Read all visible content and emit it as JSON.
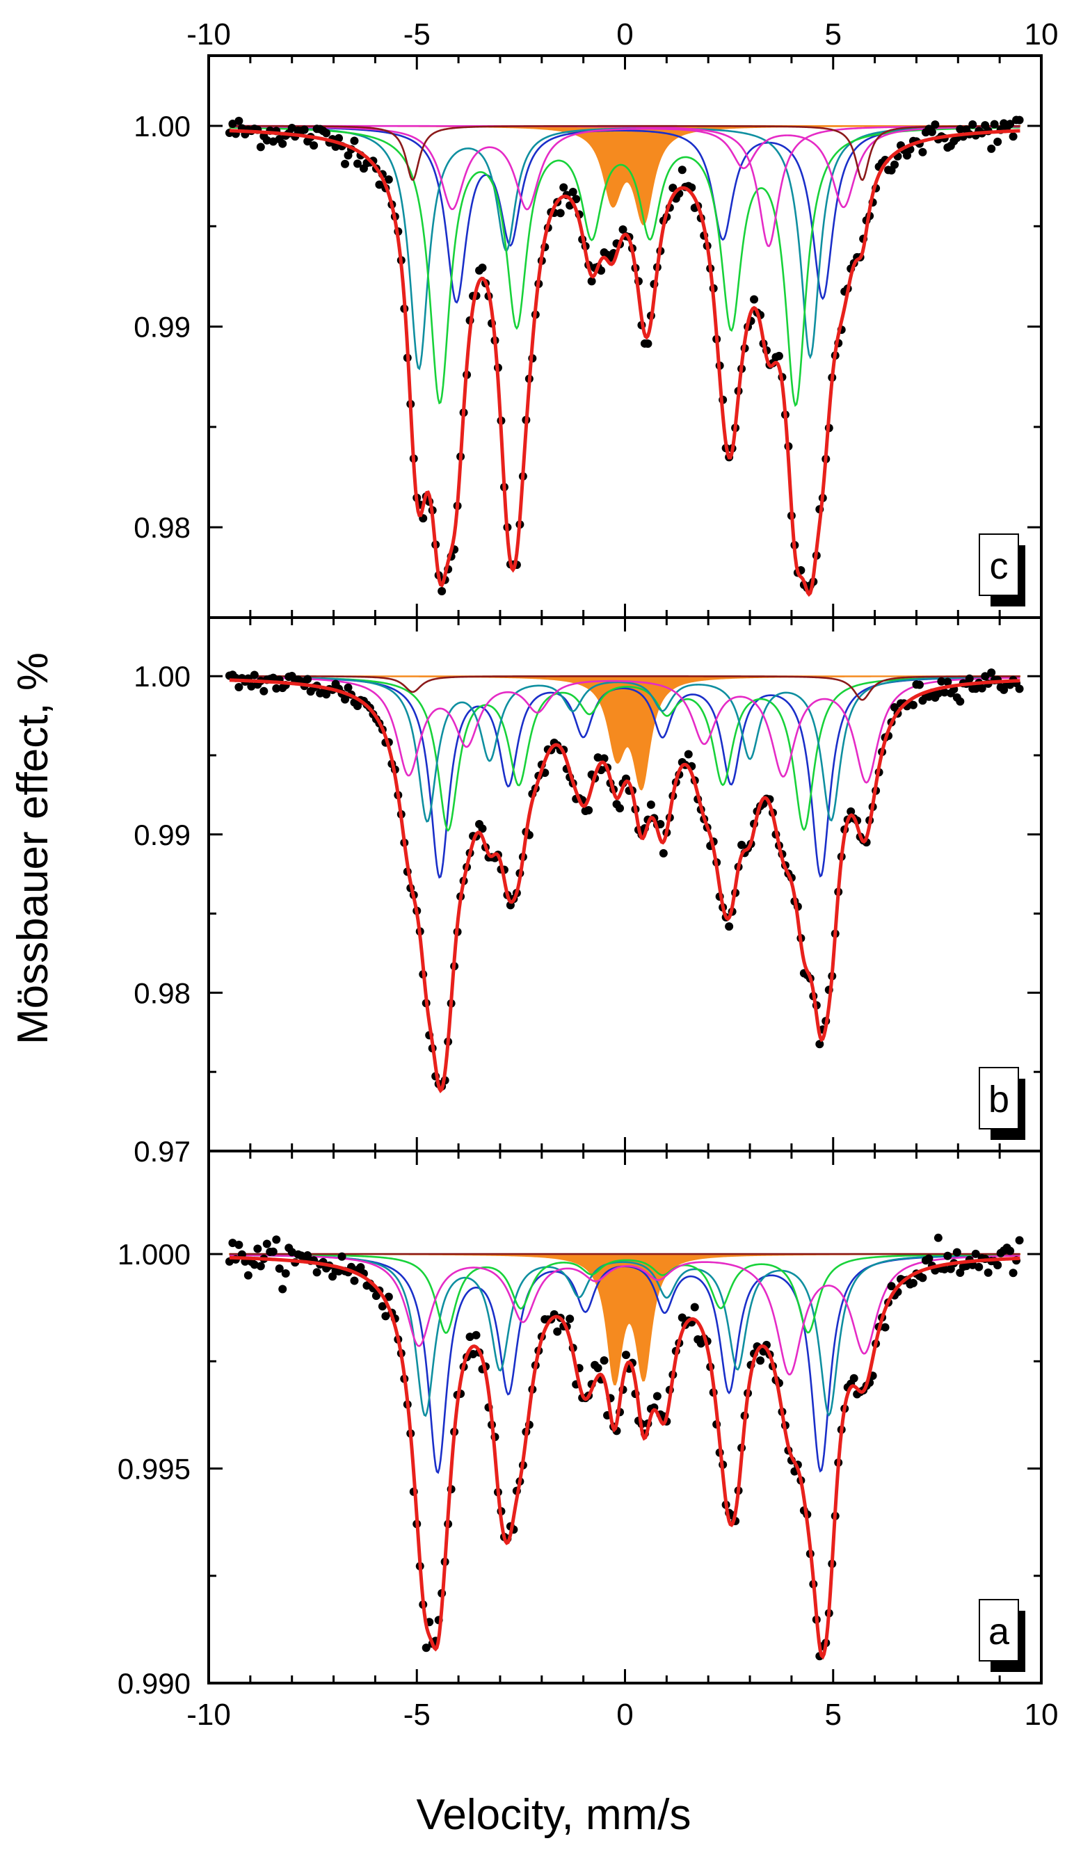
{
  "figure": {
    "xlabel": "Velocity, mm/s",
    "ylabel": "Mössbauer effect, %",
    "x_ticks": [
      "-10",
      "-5",
      "0",
      "5",
      "10"
    ],
    "xlim": [
      -10,
      10
    ]
  },
  "colors": {
    "data": "#000000",
    "fit": "#e8211c",
    "doublet": "#f58a1f",
    "blue": "#1a2fc9",
    "teal": "#0f8fa0",
    "green": "#18d23a",
    "magenta": "#e52bc6",
    "brown": "#8b1a1a"
  },
  "chart_data": [
    {
      "panel_label": "c",
      "type": "scatter",
      "ylim": [
        0.9755,
        1.0035
      ],
      "y_ticks": [
        1.0,
        0.99,
        0.98
      ],
      "y_tick_labels": [
        "1.00",
        "0.99",
        "0.98"
      ],
      "noise": 0.00045,
      "doublet": {
        "centers": [
          -0.3,
          0.45
        ],
        "depths": [
          0.0035,
          0.0045
        ],
        "width": 0.55
      },
      "sextets": [
        {
          "name": "blue",
          "color_key": "blue",
          "lines": [
            -4.3,
            -4.05,
            -2.75,
            2.35,
            3.55,
            4.75
          ],
          "depths": [
            0.0,
            0.0085,
            0.0055,
            0.0055,
            0.0,
            0.0085
          ],
          "width": 0.6
        },
        {
          "name": "teal",
          "color_key": "teal",
          "lines": [
            -4.95,
            -3.95,
            -2.85,
            2.25,
            3.4,
            4.45
          ],
          "depths": [
            0.012,
            0.0,
            0.006,
            0.0,
            0.0,
            0.0115
          ],
          "width": 0.55
        },
        {
          "name": "green",
          "color_key": "green",
          "lines": [
            -4.45,
            -2.6,
            -0.8,
            0.6,
            2.55,
            4.1
          ],
          "depths": [
            0.0135,
            0.0095,
            0.005,
            0.005,
            0.0095,
            0.0135
          ],
          "width": 0.6
        },
        {
          "name": "magenta",
          "color_key": "magenta",
          "lines": [
            -4.15,
            -2.35,
            -0.6,
            1.1,
            2.85,
            5.25
          ],
          "depths": [
            0.004,
            0.004,
            0.0,
            0.0,
            0.002,
            0.004
          ],
          "width": 0.7
        },
        {
          "name": "magenta2",
          "color_key": "magenta",
          "lines": [
            -3.55,
            -1.8,
            -0.4,
            1.95,
            3.45,
            5.4
          ],
          "depths": [
            0.0,
            0.0,
            0.0,
            0.0,
            0.006,
            0.0
          ],
          "width": 0.6
        },
        {
          "name": "brown",
          "color_key": "brown",
          "lines": [
            -5.1,
            -3.0,
            -1.0,
            0.9,
            2.9,
            5.7
          ],
          "depths": [
            0.0027,
            0.0,
            0.0,
            0.0,
            0.0,
            0.0027
          ],
          "width": 0.4
        }
      ]
    },
    {
      "panel_label": "b",
      "type": "scatter",
      "ylim": [
        0.97,
        1.0037
      ],
      "y_ticks": [
        1.0,
        0.99,
        0.98,
        0.97
      ],
      "y_tick_labels": [
        "1.00",
        "0.99",
        "0.98",
        "0.97"
      ],
      "noise": 0.00045,
      "doublet": {
        "centers": [
          -0.2,
          0.4
        ],
        "depths": [
          0.0045,
          0.0065
        ],
        "width": 0.5
      },
      "sextets": [
        {
          "name": "blue",
          "color_key": "blue",
          "lines": [
            -4.45,
            -2.8,
            -1.0,
            0.9,
            2.55,
            4.7
          ],
          "depths": [
            0.0125,
            0.0065,
            0.0035,
            0.0035,
            0.0065,
            0.0125
          ],
          "width": 0.55
        },
        {
          "name": "green",
          "color_key": "green",
          "lines": [
            -4.25,
            -2.55,
            -0.85,
            1.0,
            2.35,
            4.3
          ],
          "depths": [
            0.0095,
            0.0065,
            0.002,
            0.002,
            0.0065,
            0.0095
          ],
          "width": 0.6
        },
        {
          "name": "teal",
          "color_key": "teal",
          "lines": [
            -4.75,
            -3.25,
            -1.25,
            0.9,
            3.0,
            4.95
          ],
          "depths": [
            0.009,
            0.005,
            0.002,
            0.002,
            0.005,
            0.009
          ],
          "width": 0.55
        },
        {
          "name": "magenta",
          "color_key": "magenta",
          "lines": [
            -5.2,
            -3.8,
            -2.1,
            1.9,
            3.8,
            5.8
          ],
          "depths": [
            0.006,
            0.004,
            0.002,
            0.004,
            0.006,
            0.0065
          ],
          "width": 0.7
        },
        {
          "name": "brown",
          "color_key": "brown",
          "lines": [
            -5.1,
            -3.0,
            -1.0,
            0.9,
            2.9,
            5.7
          ],
          "depths": [
            0.001,
            0.0,
            0.0,
            0.0,
            0.0,
            0.0015
          ],
          "width": 0.5
        }
      ]
    },
    {
      "panel_label": "a",
      "type": "scatter",
      "ylim": [
        0.99,
        1.0024
      ],
      "y_ticks": [
        1.0,
        0.995,
        0.99
      ],
      "y_tick_labels": [
        "1.000",
        "0.995",
        "0.990"
      ],
      "noise": 0.00025,
      "doublet": {
        "centers": [
          -0.25,
          0.45
        ],
        "depths": [
          0.0028,
          0.0027
        ],
        "width": 0.45
      },
      "sextets": [
        {
          "name": "blue",
          "color_key": "blue",
          "lines": [
            -4.5,
            -2.8,
            -0.95,
            0.95,
            2.5,
            4.7
          ],
          "depths": [
            0.005,
            0.0031,
            0.0012,
            0.0012,
            0.0031,
            0.005
          ],
          "width": 0.55
        },
        {
          "name": "teal",
          "color_key": "teal",
          "lines": [
            -4.8,
            -3.0,
            -1.1,
            1.0,
            2.7,
            4.9
          ],
          "depths": [
            0.0037,
            0.0026,
            0.0009,
            0.0009,
            0.0026,
            0.0037
          ],
          "width": 0.55
        },
        {
          "name": "green",
          "color_key": "green",
          "lines": [
            -4.3,
            -2.5,
            -0.8,
            0.9,
            2.3,
            4.4
          ],
          "depths": [
            0.0018,
            0.0012,
            0.0004,
            0.0004,
            0.0012,
            0.0018
          ],
          "width": 0.6
        },
        {
          "name": "magenta",
          "color_key": "magenta",
          "lines": [
            -4.95,
            -2.45,
            -0.7,
            0.8,
            3.95,
            5.75
          ],
          "depths": [
            0.0021,
            0.0015,
            0.0005,
            0.0005,
            0.0027,
            0.0022
          ],
          "width": 0.75
        },
        {
          "name": "brown",
          "color_key": "brown",
          "lines": [
            -5.1,
            -3.0,
            -1.0,
            0.9,
            2.9,
            5.7
          ],
          "depths": [
            0.0,
            0.0,
            0.0,
            0.0,
            0.0,
            0.0
          ],
          "width": 0.5
        }
      ]
    }
  ]
}
